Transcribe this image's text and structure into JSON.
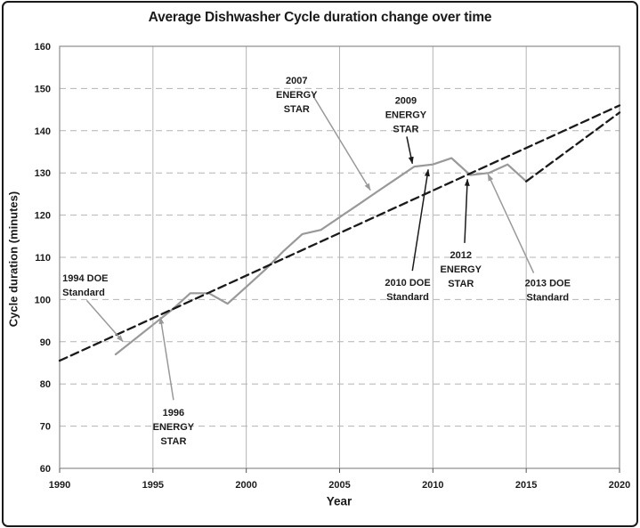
{
  "chart_data": {
    "type": "line",
    "title": "Average Dishwasher Cycle duration change over time",
    "xlabel": "Year",
    "ylabel": "Cycle duration (minutes)",
    "xlim": [
      1990,
      2020
    ],
    "ylim": [
      60,
      160
    ],
    "x_ticks": [
      1990,
      1995,
      2000,
      2005,
      2010,
      2015,
      2020
    ],
    "y_ticks": [
      60,
      70,
      80,
      90,
      100,
      110,
      120,
      130,
      140,
      150,
      160
    ],
    "grid": {
      "horizontal": "dashed",
      "vertical": "solid"
    },
    "legend": "none",
    "colors": {
      "actual_line": "#999999",
      "trend_line": "#1a1a1a",
      "grid": "#b4b4b4",
      "plot_border": "#8c8c8c",
      "text": "#1c1c1c",
      "frame": "#1a1a1a"
    },
    "series": [
      {
        "name": "actual-cycle-duration",
        "style": "solid",
        "color_key": "actual_line",
        "width": 2.2,
        "points": [
          [
            1993,
            87
          ],
          [
            1994,
            90.5
          ],
          [
            1995,
            94
          ],
          [
            1996,
            97.5
          ],
          [
            1997,
            101.5
          ],
          [
            1998,
            101.5
          ],
          [
            1999,
            99
          ],
          [
            2000,
            103
          ],
          [
            2001,
            107
          ],
          [
            2002,
            111.5
          ],
          [
            2003,
            115.5
          ],
          [
            2004,
            116.5
          ],
          [
            2005,
            119.5
          ],
          [
            2006,
            122.5
          ],
          [
            2007,
            125.5
          ],
          [
            2008,
            128.5
          ],
          [
            2009,
            131.5
          ],
          [
            2010,
            132
          ],
          [
            2011,
            133.5
          ],
          [
            2012,
            129.5
          ],
          [
            2013,
            130
          ],
          [
            2014,
            132
          ],
          [
            2015,
            128
          ]
        ]
      },
      {
        "name": "linear-trend",
        "style": "dashed",
        "color_key": "trend_line",
        "width": 2.3,
        "points": [
          [
            1990,
            85.5
          ],
          [
            2020,
            146
          ]
        ]
      },
      {
        "name": "projection",
        "style": "dashed",
        "color_key": "trend_line",
        "width": 2.3,
        "points": [
          [
            2015,
            128
          ],
          [
            2020,
            144.3
          ]
        ]
      }
    ],
    "annotations": [
      {
        "name": "1994-doe-standard",
        "lines": [
          "1994 DOE",
          "Standard"
        ],
        "align": "left",
        "text_at": [
          1990.15,
          105.2
        ],
        "arrow_color_key": "actual_line",
        "arrow_from": [
          1991.45,
          99.8
        ],
        "arrow_to": [
          1993.4,
          90.0
        ]
      },
      {
        "name": "1996-energy-star",
        "lines": [
          "1996",
          "ENERGY",
          "STAR"
        ],
        "align": "center",
        "text_at": [
          1996.1,
          73.3
        ],
        "arrow_color_key": "actual_line",
        "arrow_from": [
          1996.1,
          76.2
        ],
        "arrow_to": [
          1995.4,
          95.8
        ]
      },
      {
        "name": "2007-energy-star",
        "lines": [
          "2007",
          "ENERGY",
          "STAR"
        ],
        "align": "center",
        "text_at": [
          2002.7,
          152.0
        ],
        "arrow_color_key": "actual_line",
        "arrow_from": [
          2003.55,
          148.5
        ],
        "arrow_to": [
          2006.65,
          125.9
        ]
      },
      {
        "name": "2009-energy-star",
        "lines": [
          "2009",
          "ENERGY",
          "STAR"
        ],
        "align": "center",
        "text_at": [
          2008.55,
          147.2
        ],
        "arrow_color_key": "trend_line",
        "arrow_from": [
          2008.6,
          138.6
        ],
        "arrow_to": [
          2008.9,
          132.2
        ]
      },
      {
        "name": "2010-doe-standard",
        "lines": [
          "2010 DOE",
          "Standard"
        ],
        "align": "center",
        "text_at": [
          2008.65,
          104.1
        ],
        "arrow_color_key": "trend_line",
        "arrow_from": [
          2008.9,
          106.8
        ],
        "arrow_to": [
          2009.75,
          130.8
        ]
      },
      {
        "name": "2012-energy-star",
        "lines": [
          "2012",
          "ENERGY",
          "STAR"
        ],
        "align": "center",
        "text_at": [
          2011.5,
          110.6
        ],
        "arrow_color_key": "trend_line",
        "arrow_from": [
          2011.7,
          113.4
        ],
        "arrow_to": [
          2011.85,
          128.5
        ]
      },
      {
        "name": "2013-doe-standard",
        "lines": [
          "2013 DOE",
          "Standard"
        ],
        "align": "center",
        "text_at": [
          2016.15,
          104.0
        ],
        "arrow_color_key": "actual_line",
        "arrow_from": [
          2015.4,
          106.3
        ],
        "arrow_to": [
          2012.95,
          129.7
        ]
      }
    ]
  }
}
